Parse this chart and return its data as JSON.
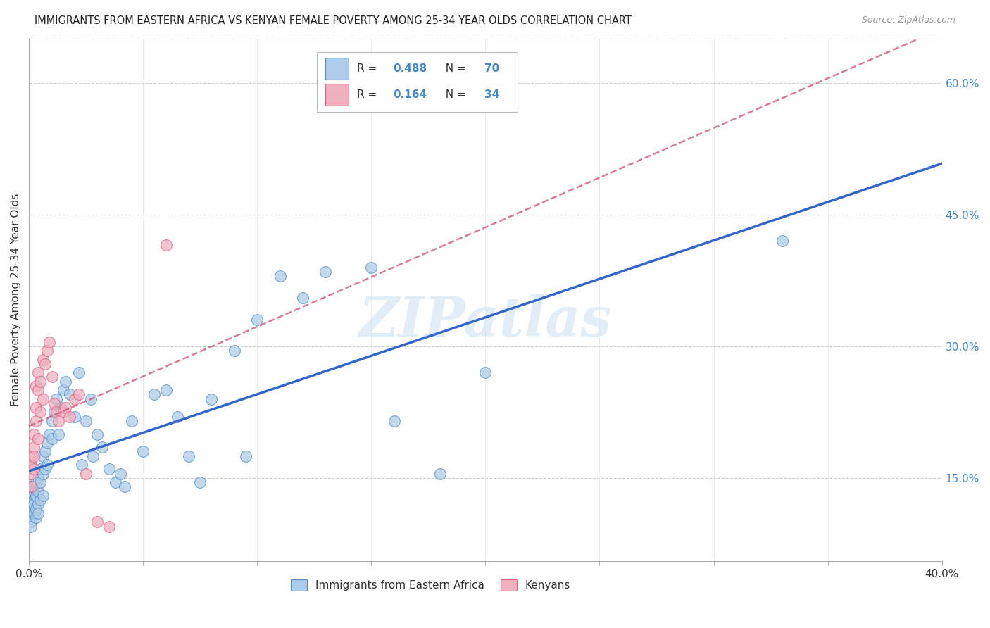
{
  "title": "IMMIGRANTS FROM EASTERN AFRICA VS KENYAN FEMALE POVERTY AMONG 25-34 YEAR OLDS CORRELATION CHART",
  "source": "Source: ZipAtlas.com",
  "ylabel": "Female Poverty Among 25-34 Year Olds",
  "xlim": [
    0.0,
    0.4
  ],
  "ylim": [
    0.055,
    0.65
  ],
  "xtick_positions": [
    0.0,
    0.05,
    0.1,
    0.15,
    0.2,
    0.25,
    0.3,
    0.35,
    0.4
  ],
  "xticklabels": [
    "0.0%",
    "",
    "",
    "",
    "",
    "",
    "",
    "",
    "40.0%"
  ],
  "ytick_positions": [
    0.15,
    0.3,
    0.45,
    0.6
  ],
  "ytick_labels": [
    "15.0%",
    "30.0%",
    "45.0%",
    "60.0%"
  ],
  "legend_label_blue": "Immigrants from Eastern Africa",
  "legend_label_pink": "Kenyans",
  "color_blue_fill": "#aecce8",
  "color_blue_edge": "#5090c8",
  "color_pink_fill": "#f0b0c0",
  "color_pink_edge": "#e06080",
  "color_blue_line": "#3366cc",
  "color_pink_line": "#cc4466",
  "watermark": "ZIPatlas",
  "background_color": "#ffffff",
  "grid_color": "#cccccc",
  "blue_r": "0.488",
  "blue_n": "70",
  "pink_r": "0.164",
  "pink_n": "34",
  "blue_x": [
    0.001,
    0.001,
    0.001,
    0.001,
    0.001,
    0.002,
    0.002,
    0.002,
    0.002,
    0.002,
    0.002,
    0.003,
    0.003,
    0.003,
    0.003,
    0.004,
    0.004,
    0.004,
    0.004,
    0.005,
    0.005,
    0.005,
    0.006,
    0.006,
    0.006,
    0.007,
    0.007,
    0.008,
    0.008,
    0.009,
    0.01,
    0.01,
    0.011,
    0.012,
    0.013,
    0.014,
    0.015,
    0.016,
    0.018,
    0.02,
    0.022,
    0.023,
    0.025,
    0.027,
    0.028,
    0.03,
    0.032,
    0.035,
    0.038,
    0.04,
    0.042,
    0.045,
    0.05,
    0.055,
    0.06,
    0.065,
    0.07,
    0.075,
    0.08,
    0.09,
    0.095,
    0.1,
    0.11,
    0.12,
    0.13,
    0.15,
    0.16,
    0.18,
    0.2,
    0.33
  ],
  "blue_y": [
    0.135,
    0.12,
    0.11,
    0.1,
    0.095,
    0.13,
    0.115,
    0.125,
    0.11,
    0.14,
    0.12,
    0.145,
    0.13,
    0.115,
    0.105,
    0.15,
    0.135,
    0.12,
    0.11,
    0.16,
    0.145,
    0.125,
    0.175,
    0.155,
    0.13,
    0.18,
    0.16,
    0.19,
    0.165,
    0.2,
    0.215,
    0.195,
    0.225,
    0.24,
    0.2,
    0.23,
    0.25,
    0.26,
    0.245,
    0.22,
    0.27,
    0.165,
    0.215,
    0.24,
    0.175,
    0.2,
    0.185,
    0.16,
    0.145,
    0.155,
    0.14,
    0.215,
    0.18,
    0.245,
    0.25,
    0.22,
    0.175,
    0.145,
    0.24,
    0.295,
    0.175,
    0.33,
    0.38,
    0.355,
    0.385,
    0.39,
    0.215,
    0.155,
    0.27,
    0.42
  ],
  "pink_x": [
    0.001,
    0.001,
    0.001,
    0.001,
    0.002,
    0.002,
    0.002,
    0.002,
    0.003,
    0.003,
    0.003,
    0.004,
    0.004,
    0.004,
    0.005,
    0.005,
    0.006,
    0.006,
    0.007,
    0.008,
    0.009,
    0.01,
    0.011,
    0.012,
    0.013,
    0.015,
    0.016,
    0.018,
    0.02,
    0.022,
    0.025,
    0.03,
    0.035,
    0.06
  ],
  "pink_y": [
    0.155,
    0.14,
    0.175,
    0.165,
    0.185,
    0.175,
    0.2,
    0.16,
    0.23,
    0.215,
    0.255,
    0.27,
    0.25,
    0.195,
    0.26,
    0.225,
    0.285,
    0.24,
    0.28,
    0.295,
    0.305,
    0.265,
    0.235,
    0.225,
    0.215,
    0.225,
    0.23,
    0.22,
    0.24,
    0.245,
    0.155,
    0.1,
    0.095,
    0.415
  ]
}
